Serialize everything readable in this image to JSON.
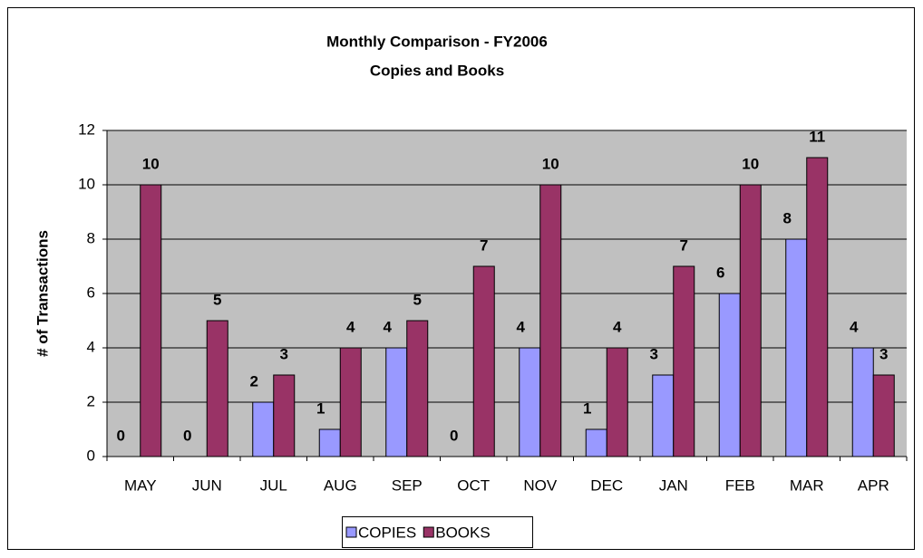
{
  "chart_data": {
    "type": "bar",
    "title": "Monthly Comparison - FY2006",
    "subtitle": "Copies and Books",
    "y_label": "# of Transactions",
    "categories": [
      "MAY",
      "JUN",
      "JUL",
      "AUG",
      "SEP",
      "OCT",
      "NOV",
      "DEC",
      "JAN",
      "FEB",
      "MAR",
      "APR"
    ],
    "series": [
      {
        "name": "COPIES",
        "color": "#9999ff",
        "values": [
          0,
          0,
          2,
          1,
          4,
          0,
          4,
          1,
          3,
          6,
          8,
          4
        ]
      },
      {
        "name": "BOOKS",
        "color": "#993366",
        "values": [
          10,
          5,
          3,
          4,
          5,
          7,
          10,
          4,
          7,
          10,
          11,
          3
        ]
      }
    ],
    "ylim": [
      0,
      12
    ],
    "yticks": [
      0,
      2,
      4,
      6,
      8,
      10,
      12
    ],
    "grid": true,
    "legend": "bottom"
  }
}
